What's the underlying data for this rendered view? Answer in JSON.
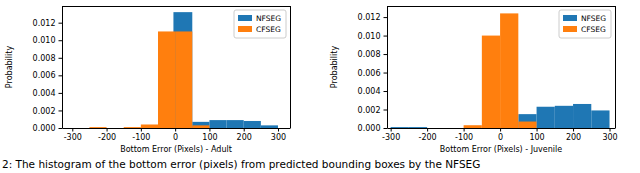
{
  "caption": "2: The histogram of the bottom error (pixels) from predicted bounding boxes by the NFSEG",
  "chart_data": [
    {
      "type": "histogram",
      "x_label": "Bottom Error (Pixels) - Adult",
      "y_label": "Probability",
      "legend": "upper-right",
      "grid": false,
      "xlim": [
        -330,
        335
      ],
      "ylim": [
        0,
        0.0139
      ],
      "xticks": [
        -300,
        -200,
        -100,
        0,
        100,
        200,
        300
      ],
      "yticks": [
        {
          "value": 0,
          "label": "0.000"
        },
        {
          "value": 0.002,
          "label": "0.002"
        },
        {
          "value": 0.004,
          "label": "0.004"
        },
        {
          "value": 0.006,
          "label": "0.006"
        },
        {
          "value": 0.008,
          "label": "0.008"
        },
        {
          "value": 0.01,
          "label": "0.010"
        },
        {
          "value": 0.012,
          "label": "0.012"
        }
      ],
      "series": [
        {
          "name": "NFSEG",
          "color": "#1f77b4",
          "bins": [
            -5,
            50,
            100,
            150,
            200,
            250,
            300
          ],
          "values": [
            0.0132,
            0.0007,
            0.0009,
            0.0009,
            0.0008,
            0.0003
          ]
        },
        {
          "name": "CFSEG",
          "color": "#ff7f0e",
          "bins": [
            -250,
            -200,
            -150,
            -100,
            -50,
            0,
            50,
            100
          ],
          "values": [
            0.0001,
            0,
            0.0001,
            0.0004,
            0.011,
            0.011,
            0.0003
          ]
        }
      ]
    },
    {
      "type": "histogram",
      "x_label": "Bottom Error (Pixels) - Juvenile",
      "y_label": "Probability",
      "legend": "upper-right",
      "grid": false,
      "xlim": [
        -310,
        315
      ],
      "ylim": [
        0,
        0.0132
      ],
      "xticks": [
        -300,
        -200,
        -100,
        0,
        100,
        200,
        300
      ],
      "yticks": [
        {
          "value": 0,
          "label": "0.000"
        },
        {
          "value": 0.002,
          "label": "0.002"
        },
        {
          "value": 0.004,
          "label": "0.004"
        },
        {
          "value": 0.006,
          "label": "0.006"
        },
        {
          "value": 0.008,
          "label": "0.008"
        },
        {
          "value": 0.01,
          "label": "0.010"
        },
        {
          "value": 0.012,
          "label": "0.012"
        }
      ],
      "series": [
        {
          "name": "NFSEG",
          "color": "#1f77b4",
          "bins": [
            -300,
            -250,
            -200,
            -150,
            -100,
            -50,
            0,
            50,
            100,
            150,
            200,
            250,
            300
          ],
          "values": [
            0.0001,
            0.0001,
            0,
            0,
            0,
            0,
            0,
            0.0015,
            0.0023,
            0.0024,
            0.0026,
            0.0019
          ]
        },
        {
          "name": "CFSEG",
          "color": "#ff7f0e",
          "bins": [
            -100,
            -50,
            0,
            50,
            100
          ],
          "values": [
            0.0003,
            0.01,
            0.0124,
            0.0007
          ]
        }
      ]
    }
  ]
}
